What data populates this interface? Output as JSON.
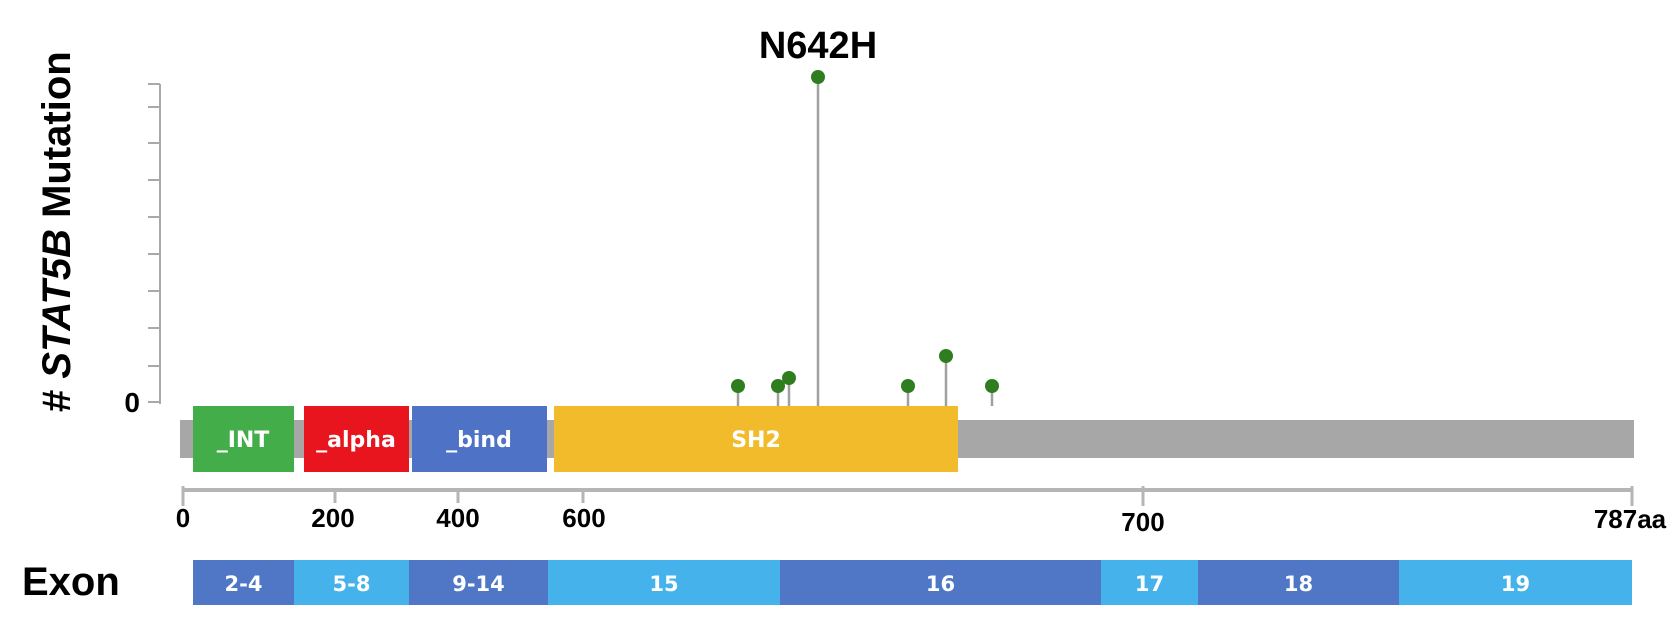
{
  "chart_data": {
    "type": "lollipop",
    "ylabel_prefix": "# ",
    "ylabel_gene": "STAT5B",
    "ylabel_suffix": " Mutation",
    "y_tick_label": "0",
    "annotation": "N642H",
    "x_tick_labels": [
      "0",
      "200",
      "400",
      "600",
      "700",
      "787aa"
    ],
    "colors": {
      "lollipop": "#2e7d1e",
      "stem": "#a0a0a0",
      "backbone": "#a7a7a7",
      "axis": "#b5b5b5",
      "domain_green": "#43ad4a",
      "domain_red": "#e8141e",
      "domain_blue": "#4e73c6",
      "domain_yellow": "#f2bb2c",
      "exon_dark": "#4f77c6",
      "exon_light": "#45b2ec"
    },
    "domains": [
      {
        "label": "_INT",
        "color": "#43ad4a"
      },
      {
        "label": "_alpha",
        "color": "#e8141e"
      },
      {
        "label": "_bind",
        "color": "#4e73c6"
      },
      {
        "label": "SH2",
        "color": "#f2bb2c"
      }
    ],
    "exon_label": "Exon",
    "exons": [
      {
        "label": "2-4",
        "color": "#4f77c6"
      },
      {
        "label": "5-8",
        "color": "#45b2ec"
      },
      {
        "label": "9-14",
        "color": "#4f77c6"
      },
      {
        "label": "15",
        "color": "#45b2ec"
      },
      {
        "label": "16",
        "color": "#4f77c6"
      },
      {
        "label": "17",
        "color": "#45b2ec"
      },
      {
        "label": "18",
        "color": "#4f77c6"
      },
      {
        "label": "19",
        "color": "#45b2ec"
      }
    ],
    "mutations": [
      {
        "count": 1
      },
      {
        "count": 1
      },
      {
        "count": 1.2
      },
      {
        "label": "N642H",
        "count": 15
      },
      {
        "count": 1
      },
      {
        "count": 2
      },
      {
        "count": 1
      }
    ]
  }
}
